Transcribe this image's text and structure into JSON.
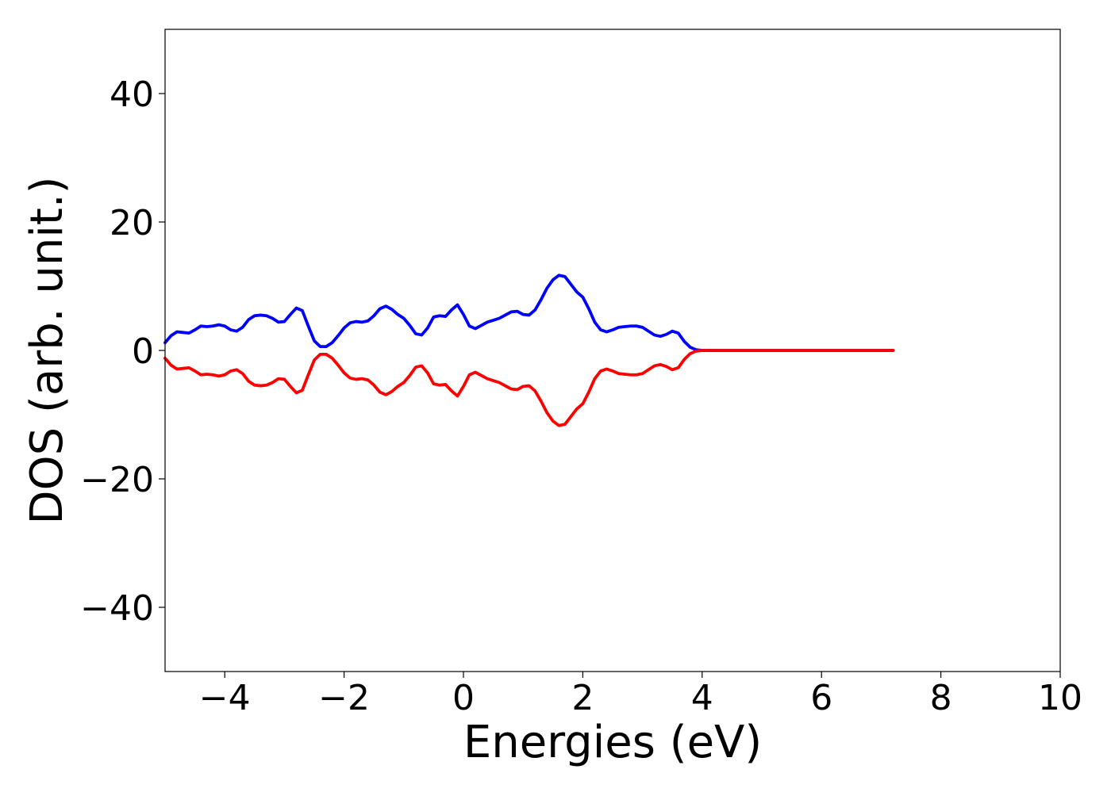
{
  "chart_data": {
    "type": "line",
    "title": "",
    "xlabel": "Energies (eV)",
    "ylabel": "DOS (arb. unit.)",
    "xlim": [
      -5,
      10
    ],
    "ylim": [
      -50,
      50
    ],
    "x_ticks": [
      -4,
      -2,
      0,
      2,
      4,
      6,
      8,
      10
    ],
    "y_ticks": [
      40,
      20,
      0,
      -20,
      -40
    ],
    "x_tick_labels": [
      "−4",
      "−2",
      "0",
      "2",
      "4",
      "6",
      "8",
      "10"
    ],
    "y_tick_labels": [
      "40",
      "20",
      "0",
      "−20",
      "−40"
    ],
    "grid": false,
    "legend": "none",
    "series": [
      {
        "color": "#0000ff",
        "x": [
          -5.0,
          -4.9,
          -4.8,
          -4.7,
          -4.6,
          -4.5,
          -4.4,
          -4.3,
          -4.2,
          -4.1,
          -4.0,
          -3.9,
          -3.8,
          -3.7,
          -3.6,
          -3.5,
          -3.4,
          -3.3,
          -3.2,
          -3.1,
          -3.0,
          -2.9,
          -2.8,
          -2.7,
          -2.6,
          -2.5,
          -2.4,
          -2.3,
          -2.2,
          -2.1,
          -2.0,
          -1.9,
          -1.8,
          -1.7,
          -1.6,
          -1.5,
          -1.4,
          -1.3,
          -1.2,
          -1.1,
          -1.0,
          -0.9,
          -0.8,
          -0.7,
          -0.6,
          -0.5,
          -0.4,
          -0.3,
          -0.2,
          -0.1,
          0.0,
          0.1,
          0.2,
          0.3,
          0.4,
          0.5,
          0.6,
          0.7,
          0.8,
          0.9,
          1.0,
          1.1,
          1.2,
          1.3,
          1.4,
          1.5,
          1.6,
          1.7,
          1.8,
          1.9,
          2.0,
          2.1,
          2.2,
          2.3,
          2.4,
          2.5,
          2.6,
          2.7,
          2.8,
          2.9,
          3.0,
          3.1,
          3.2,
          3.3,
          3.4,
          3.5,
          3.6,
          3.7,
          3.8,
          3.9,
          4.0,
          4.1,
          4.2,
          4.3,
          4.4,
          4.5,
          4.6,
          4.7,
          4.8,
          4.9,
          5.0,
          5.1,
          5.2,
          5.3,
          5.4,
          5.5,
          5.6,
          5.8,
          6.0,
          6.5,
          7.0,
          7.2
        ],
        "y": [
          1.2,
          2.3,
          2.9,
          2.8,
          2.7,
          3.2,
          3.8,
          3.7,
          3.8,
          4.0,
          3.8,
          3.2,
          3.0,
          3.6,
          4.8,
          5.4,
          5.5,
          5.4,
          5.0,
          4.4,
          4.5,
          5.6,
          6.6,
          6.2,
          3.8,
          1.5,
          0.6,
          0.6,
          1.2,
          2.3,
          3.5,
          4.3,
          4.5,
          4.4,
          4.6,
          5.4,
          6.5,
          6.9,
          6.4,
          5.6,
          5.0,
          3.9,
          2.6,
          2.4,
          3.5,
          5.2,
          5.4,
          5.3,
          6.3,
          7.1,
          5.6,
          3.8,
          3.4,
          3.9,
          4.4,
          4.7,
          5.0,
          5.5,
          6.0,
          6.1,
          5.6,
          5.5,
          6.3,
          7.9,
          9.7,
          11.0,
          11.7,
          11.5,
          10.3,
          9.1,
          8.3,
          6.5,
          4.4,
          3.2,
          2.9,
          3.2,
          3.6,
          3.7,
          3.8,
          3.8,
          3.6,
          3.0,
          2.4,
          2.2,
          2.5,
          3.0,
          2.7,
          1.4,
          0.5,
          0.1,
          0.0,
          0.0,
          0.0,
          0.0,
          0.0,
          0.0,
          0.0,
          0.0,
          0.0,
          0.0,
          0.0,
          0.0,
          0.0,
          0.0,
          0.0,
          0.0,
          0.0,
          0.0,
          0.0,
          0.0,
          0.0,
          0.0
        ]
      },
      {
        "color": "#ff0000",
        "x": [
          -5.0,
          -4.9,
          -4.8,
          -4.7,
          -4.6,
          -4.5,
          -4.4,
          -4.3,
          -4.2,
          -4.1,
          -4.0,
          -3.9,
          -3.8,
          -3.7,
          -3.6,
          -3.5,
          -3.4,
          -3.3,
          -3.2,
          -3.1,
          -3.0,
          -2.9,
          -2.8,
          -2.7,
          -2.6,
          -2.5,
          -2.4,
          -2.3,
          -2.2,
          -2.1,
          -2.0,
          -1.9,
          -1.8,
          -1.7,
          -1.6,
          -1.5,
          -1.4,
          -1.3,
          -1.2,
          -1.1,
          -1.0,
          -0.9,
          -0.8,
          -0.7,
          -0.6,
          -0.5,
          -0.4,
          -0.3,
          -0.2,
          -0.1,
          0.0,
          0.1,
          0.2,
          0.3,
          0.4,
          0.5,
          0.6,
          0.7,
          0.8,
          0.9,
          1.0,
          1.1,
          1.2,
          1.3,
          1.4,
          1.5,
          1.6,
          1.7,
          1.8,
          1.9,
          2.0,
          2.1,
          2.2,
          2.3,
          2.4,
          2.5,
          2.6,
          2.7,
          2.8,
          2.9,
          3.0,
          3.1,
          3.2,
          3.3,
          3.4,
          3.5,
          3.6,
          3.7,
          3.8,
          3.9,
          4.0,
          4.1,
          4.2,
          4.3,
          4.4,
          4.5,
          4.6,
          4.7,
          4.8,
          4.9,
          5.0,
          5.1,
          5.2,
          5.3,
          5.4,
          5.5,
          5.6,
          5.8,
          6.0,
          6.5,
          7.0,
          7.2
        ],
        "y": [
          -1.2,
          -2.3,
          -2.9,
          -2.8,
          -2.7,
          -3.2,
          -3.8,
          -3.7,
          -3.8,
          -4.0,
          -3.8,
          -3.2,
          -3.0,
          -3.6,
          -4.8,
          -5.4,
          -5.5,
          -5.4,
          -5.0,
          -4.4,
          -4.5,
          -5.6,
          -6.6,
          -6.2,
          -3.8,
          -1.5,
          -0.6,
          -0.6,
          -1.2,
          -2.3,
          -3.5,
          -4.3,
          -4.5,
          -4.4,
          -4.6,
          -5.4,
          -6.5,
          -6.9,
          -6.4,
          -5.6,
          -5.0,
          -3.9,
          -2.6,
          -2.4,
          -3.5,
          -5.2,
          -5.4,
          -5.3,
          -6.3,
          -7.1,
          -5.6,
          -3.8,
          -3.4,
          -3.9,
          -4.4,
          -4.7,
          -5.0,
          -5.5,
          -6.0,
          -6.1,
          -5.6,
          -5.5,
          -6.3,
          -7.9,
          -9.7,
          -11.0,
          -11.7,
          -11.5,
          -10.3,
          -9.1,
          -8.3,
          -6.5,
          -4.4,
          -3.2,
          -2.9,
          -3.2,
          -3.6,
          -3.7,
          -3.8,
          -3.8,
          -3.6,
          -3.0,
          -2.4,
          -2.2,
          -2.5,
          -3.0,
          -2.7,
          -1.4,
          -0.5,
          -0.1,
          0.0,
          0.0,
          0.0,
          0.0,
          0.0,
          0.0,
          0.0,
          0.0,
          0.0,
          0.0,
          0.0,
          0.0,
          0.0,
          0.0,
          0.0,
          0.0,
          0.0,
          0.0,
          0.0,
          0.0,
          0.0,
          0.0
        ]
      }
    ]
  }
}
